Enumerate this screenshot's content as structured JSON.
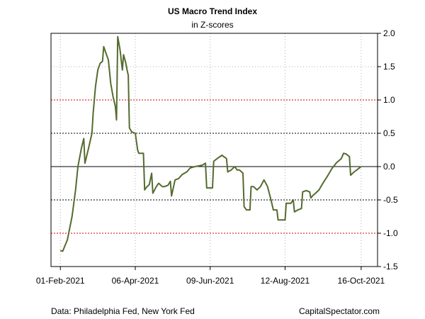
{
  "chart_data": {
    "type": "line",
    "title": "US Macro Trend Index",
    "subtitle": "in Z-scores",
    "xlabel": "",
    "ylabel": "",
    "ylim": [
      -1.5,
      2.0
    ],
    "yticks": [
      2.0,
      1.5,
      1.0,
      0.5,
      0.0,
      -0.5,
      -1.0,
      -1.5
    ],
    "ytick_labels": [
      "2.0",
      "1.5",
      "1.0",
      "0.5",
      "0.0",
      "-0.5",
      "-1.0",
      "-1.5"
    ],
    "xlim": [
      "2021-01-24",
      "2021-10-30"
    ],
    "xticks": [
      "2021-02-01",
      "2021-04-06",
      "2021-06-09",
      "2021-08-12",
      "2021-10-16"
    ],
    "xtick_labels": [
      "01-Feb-2021",
      "06-Apr-2021",
      "09-Jun-2021",
      "12-Aug-2021",
      "16-Oct-2021"
    ],
    "y_axis_position": "right",
    "grid": "dotted",
    "reference_lines": [
      {
        "y": 0.5,
        "color": "#000000",
        "style": "dashed"
      },
      {
        "y": 1.0,
        "color": "#cc0000",
        "style": "dashed"
      },
      {
        "y": -0.5,
        "color": "#000000",
        "style": "dashed"
      },
      {
        "y": -1.0,
        "color": "#cc0000",
        "style": "dashed"
      },
      {
        "y": 0.0,
        "color": "#000000",
        "style": "solid"
      }
    ],
    "series": [
      {
        "color": "#556b2f",
        "points": [
          [
            "2021-02-01",
            -1.26
          ],
          [
            "2021-02-03",
            -1.27
          ],
          [
            "2021-02-07",
            -1.1
          ],
          [
            "2021-02-11",
            -0.75
          ],
          [
            "2021-02-14",
            -0.35
          ],
          [
            "2021-02-16",
            0.0
          ],
          [
            "2021-02-19",
            0.28
          ],
          [
            "2021-02-21",
            0.42
          ],
          [
            "2021-02-22",
            0.05
          ],
          [
            "2021-02-25",
            0.27
          ],
          [
            "2021-02-28",
            0.5
          ],
          [
            "2021-03-01",
            0.8
          ],
          [
            "2021-03-03",
            1.2
          ],
          [
            "2021-03-05",
            1.45
          ],
          [
            "2021-03-07",
            1.55
          ],
          [
            "2021-03-09",
            1.58
          ],
          [
            "2021-03-10",
            1.8
          ],
          [
            "2021-03-12",
            1.7
          ],
          [
            "2021-03-14",
            1.6
          ],
          [
            "2021-03-16",
            1.25
          ],
          [
            "2021-03-18",
            1.05
          ],
          [
            "2021-03-20",
            0.9
          ],
          [
            "2021-03-21",
            0.7
          ],
          [
            "2021-03-22",
            1.95
          ],
          [
            "2021-03-24",
            1.75
          ],
          [
            "2021-03-25",
            1.6
          ],
          [
            "2021-03-26",
            1.45
          ],
          [
            "2021-03-27",
            1.68
          ],
          [
            "2021-03-29",
            1.55
          ],
          [
            "2021-03-30",
            1.45
          ],
          [
            "2021-03-31",
            1.37
          ],
          [
            "2021-04-01",
            0.58
          ],
          [
            "2021-04-03",
            0.52
          ],
          [
            "2021-04-06",
            0.5
          ],
          [
            "2021-04-08",
            0.25
          ],
          [
            "2021-04-09",
            0.2
          ],
          [
            "2021-04-13",
            0.2
          ],
          [
            "2021-04-14",
            -0.35
          ],
          [
            "2021-04-16",
            -0.3
          ],
          [
            "2021-04-18",
            -0.27
          ],
          [
            "2021-04-20",
            -0.1
          ],
          [
            "2021-04-21",
            -0.4
          ],
          [
            "2021-04-24",
            -0.3
          ],
          [
            "2021-04-26",
            -0.25
          ],
          [
            "2021-04-29",
            -0.3
          ],
          [
            "2021-05-01",
            -0.3
          ],
          [
            "2021-05-04",
            -0.28
          ],
          [
            "2021-05-06",
            -0.22
          ],
          [
            "2021-05-07",
            -0.44
          ],
          [
            "2021-05-10",
            -0.2
          ],
          [
            "2021-05-13",
            -0.18
          ],
          [
            "2021-05-16",
            -0.12
          ],
          [
            "2021-05-20",
            -0.08
          ],
          [
            "2021-05-23",
            -0.02
          ],
          [
            "2021-05-27",
            0.0
          ],
          [
            "2021-06-02",
            0.02
          ],
          [
            "2021-06-05",
            0.05
          ],
          [
            "2021-06-06",
            -0.32
          ],
          [
            "2021-06-09",
            -0.32
          ],
          [
            "2021-06-11",
            -0.32
          ],
          [
            "2021-06-12",
            0.08
          ],
          [
            "2021-06-15",
            0.12
          ],
          [
            "2021-06-19",
            0.17
          ],
          [
            "2021-06-23",
            0.12
          ],
          [
            "2021-06-24",
            -0.08
          ],
          [
            "2021-06-27",
            -0.05
          ],
          [
            "2021-06-30",
            0.0
          ],
          [
            "2021-07-02",
            -0.05
          ],
          [
            "2021-07-04",
            -0.05
          ],
          [
            "2021-07-07",
            -0.1
          ],
          [
            "2021-07-08",
            -0.6
          ],
          [
            "2021-07-10",
            -0.65
          ],
          [
            "2021-07-13",
            -0.65
          ],
          [
            "2021-07-14",
            -0.3
          ],
          [
            "2021-07-16",
            -0.3
          ],
          [
            "2021-07-19",
            -0.35
          ],
          [
            "2021-07-22",
            -0.3
          ],
          [
            "2021-07-25",
            -0.2
          ],
          [
            "2021-07-28",
            -0.3
          ],
          [
            "2021-07-31",
            -0.5
          ],
          [
            "2021-08-02",
            -0.65
          ],
          [
            "2021-08-05",
            -0.65
          ],
          [
            "2021-08-06",
            -0.8
          ],
          [
            "2021-08-10",
            -0.8
          ],
          [
            "2021-08-12",
            -0.8
          ],
          [
            "2021-08-13",
            -0.55
          ],
          [
            "2021-08-17",
            -0.55
          ],
          [
            "2021-08-19",
            -0.5
          ],
          [
            "2021-08-20",
            -0.68
          ],
          [
            "2021-08-23",
            -0.65
          ],
          [
            "2021-08-26",
            -0.63
          ],
          [
            "2021-08-27",
            -0.38
          ],
          [
            "2021-08-30",
            -0.36
          ],
          [
            "2021-09-02",
            -0.38
          ],
          [
            "2021-09-03",
            -0.47
          ],
          [
            "2021-09-05",
            -0.43
          ],
          [
            "2021-09-07",
            -0.4
          ],
          [
            "2021-09-10",
            -0.35
          ],
          [
            "2021-09-13",
            -0.26
          ],
          [
            "2021-09-17",
            -0.15
          ],
          [
            "2021-09-21",
            -0.03
          ],
          [
            "2021-09-25",
            0.06
          ],
          [
            "2021-09-29",
            0.12
          ],
          [
            "2021-10-01",
            0.2
          ],
          [
            "2021-10-03",
            0.19
          ],
          [
            "2021-10-06",
            0.15
          ],
          [
            "2021-10-07",
            -0.13
          ],
          [
            "2021-10-10",
            -0.08
          ],
          [
            "2021-10-13",
            -0.04
          ],
          [
            "2021-10-16",
            0.0
          ]
        ]
      }
    ]
  },
  "footer": {
    "source": "Data: Philadelphia Fed, New York Fed",
    "site": "CapitalSpectator.com"
  }
}
